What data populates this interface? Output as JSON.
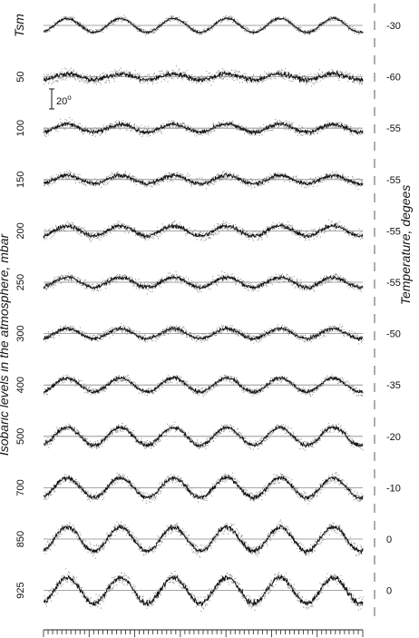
{
  "chart_data": {
    "type": "line",
    "title": "",
    "ylabel_left": "Isobaric levels in the atmosphere, mbar",
    "ylabel_right": "Temperature, degees",
    "scale_bar": {
      "label": "20",
      "unit_symbol": "o",
      "value": 20
    },
    "cycles": 6,
    "x_ticks": 70,
    "series": [
      {
        "name": "Tsm",
        "reference_temp": "-30",
        "amplitude_deg": 7,
        "noise_deg": 1.2
      },
      {
        "name": "50",
        "reference_temp": "-60",
        "amplitude_deg": 3,
        "noise_deg": 2.5
      },
      {
        "name": "100",
        "reference_temp": "-55",
        "amplitude_deg": 4,
        "noise_deg": 2.0
      },
      {
        "name": "150",
        "reference_temp": "-55",
        "amplitude_deg": 4,
        "noise_deg": 2.0
      },
      {
        "name": "200",
        "reference_temp": "-55",
        "amplitude_deg": 5,
        "noise_deg": 2.2
      },
      {
        "name": "250",
        "reference_temp": "-55",
        "amplitude_deg": 5,
        "noise_deg": 2.0
      },
      {
        "name": "300",
        "reference_temp": "-50",
        "amplitude_deg": 5,
        "noise_deg": 1.8
      },
      {
        "name": "400",
        "reference_temp": "-35",
        "amplitude_deg": 7,
        "noise_deg": 1.8
      },
      {
        "name": "500",
        "reference_temp": "-20",
        "amplitude_deg": 9,
        "noise_deg": 2.0
      },
      {
        "name": "700",
        "reference_temp": "-10",
        "amplitude_deg": 10,
        "noise_deg": 2.2
      },
      {
        "name": "850",
        "reference_temp": "0",
        "amplitude_deg": 12,
        "noise_deg": 2.5
      },
      {
        "name": "925",
        "reference_temp": "0",
        "amplitude_deg": 13,
        "noise_deg": 2.8
      }
    ],
    "colors": {
      "series_line": "#111111",
      "scatter_points": "#9a9a9a",
      "reference_line": "#888888"
    }
  }
}
